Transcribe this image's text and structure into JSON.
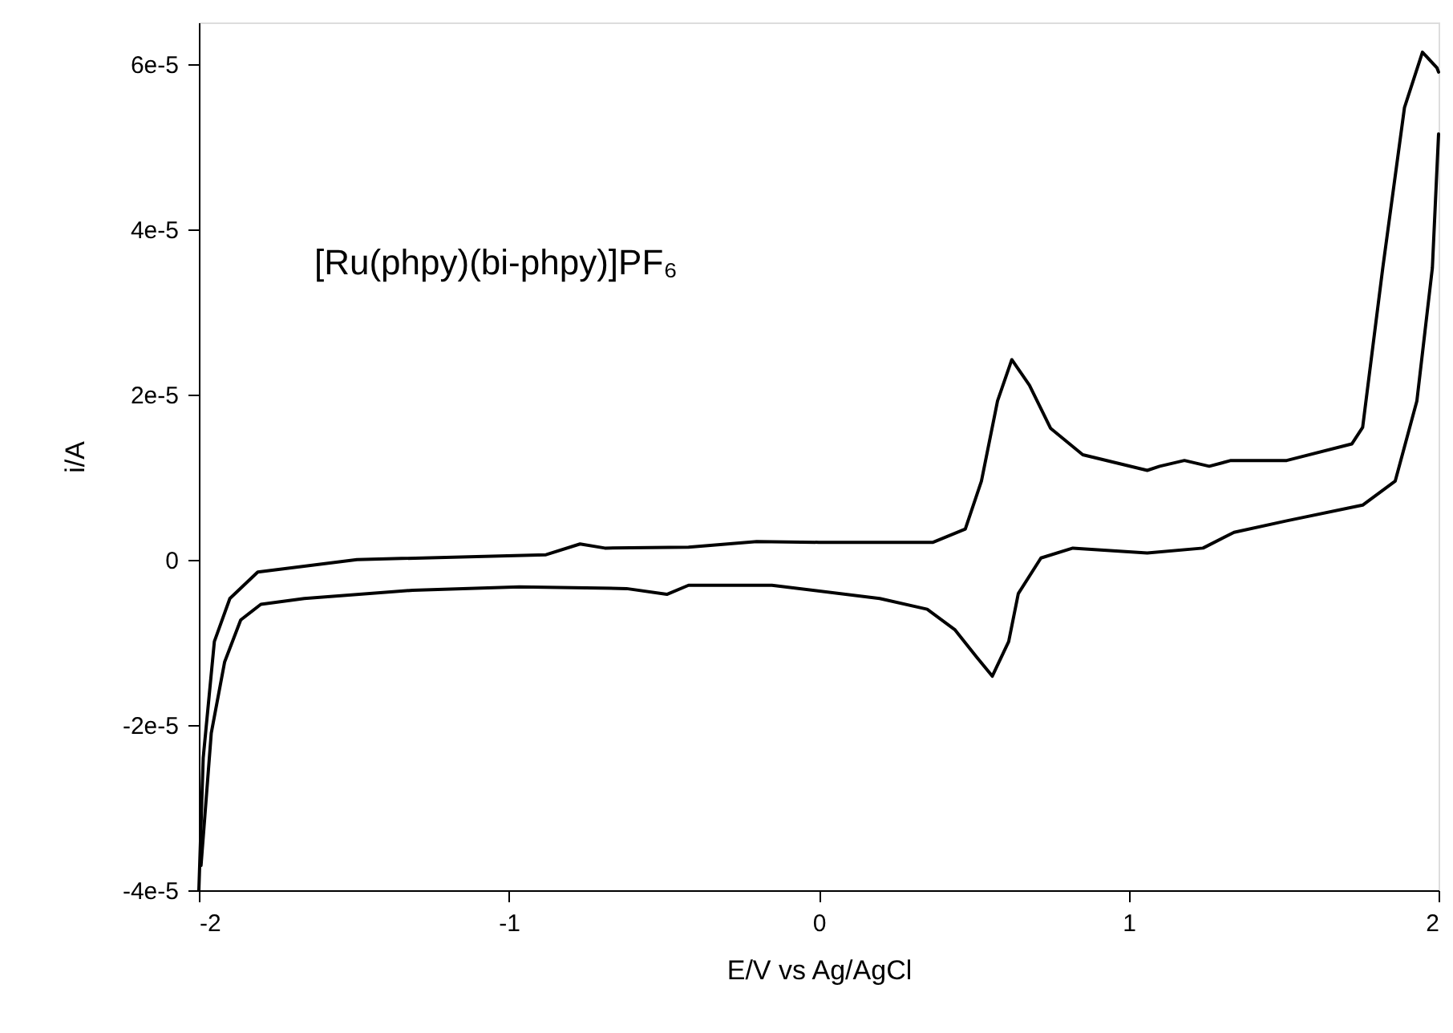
{
  "chart_data": {
    "type": "line",
    "xlabel": "E/V vs Ag/AgCl",
    "ylabel": "i/A",
    "annotations": [
      "[Ru(phpy)(bi-phpy)]PF₆"
    ],
    "xlim": [
      -2,
      2
    ],
    "xticks": [
      -2,
      -1,
      0,
      1,
      2
    ],
    "ylim": [
      -4e-05,
      6.5e-05
    ],
    "yticks": [
      {
        "value": -4e-05,
        "label": "-4e-5"
      },
      {
        "value": -2e-05,
        "label": "-2e-5"
      },
      {
        "value": 0,
        "label": "0"
      },
      {
        "value": 2e-05,
        "label": "2e-5"
      },
      {
        "value": 4e-05,
        "label": "4e-5"
      },
      {
        "value": 6e-05,
        "label": "6e-5"
      }
    ],
    "grid": false,
    "line_style": "solid",
    "marker": "none",
    "series": [
      {
        "color": "#000000",
        "x": [
          -2.0,
          -1.986,
          -1.95,
          -1.9,
          -1.81,
          -1.49,
          -0.88,
          -0.77,
          -0.69,
          -0.42,
          -0.2,
          0.0,
          0.369,
          0.473,
          0.525,
          0.577,
          0.623,
          0.68,
          0.748,
          0.852,
          1.06,
          1.1,
          1.18,
          1.26,
          1.33,
          1.51,
          1.72,
          1.755,
          1.82,
          1.89,
          1.948,
          1.995,
          2.0
        ],
        "values": [
          -4e-05,
          -2.4e-05,
          -9.9e-06,
          -4.7e-06,
          -1.5e-06,
          0.0,
          6e-07,
          1.9e-06,
          1.4e-06,
          1.5e-06,
          2.2e-06,
          2.1e-06,
          2.1e-06,
          3.7e-06,
          9.5e-06,
          1.92e-05,
          2.42e-05,
          2.11e-05,
          1.59e-05,
          1.27e-05,
          1.08e-05,
          1.13e-05,
          1.2e-05,
          1.13e-05,
          1.2e-05,
          1.2e-05,
          1.4e-05,
          1.6e-05,
          3.53e-05,
          5.47e-05,
          6.14e-05,
          5.95e-05,
          5.9e-05
        ]
      },
      {
        "color": "#000000",
        "x": [
          2.0,
          1.98,
          1.93,
          1.86,
          1.755,
          1.51,
          1.34,
          1.24,
          1.06,
          0.82,
          0.717,
          0.644,
          0.613,
          0.56,
          0.51,
          0.44,
          0.35,
          0.197,
          -0.151,
          -0.27,
          -0.42,
          -0.49,
          -0.62,
          -0.966,
          -1.31,
          -1.66,
          -1.8,
          -1.865,
          -1.917,
          -1.96,
          -1.993
        ],
        "values": [
          5.15e-05,
          3.53e-05,
          1.92e-05,
          9.5e-06,
          6.6e-06,
          4.7e-06,
          3.3e-06,
          1.4e-06,
          8e-07,
          1.4e-06,
          2e-07,
          -4.1e-06,
          -9.9e-06,
          -1.41e-05,
          -1.18e-05,
          -8.5e-06,
          -6e-06,
          -4.7e-06,
          -3.1e-06,
          -3.1e-06,
          -3.1e-06,
          -4.2e-06,
          -3.5e-06,
          -3.3e-06,
          -3.7e-06,
          -4.7e-06,
          -5.4e-06,
          -7.3e-06,
          -1.24e-05,
          -2.1e-05,
          -3.7e-05
        ]
      }
    ]
  }
}
